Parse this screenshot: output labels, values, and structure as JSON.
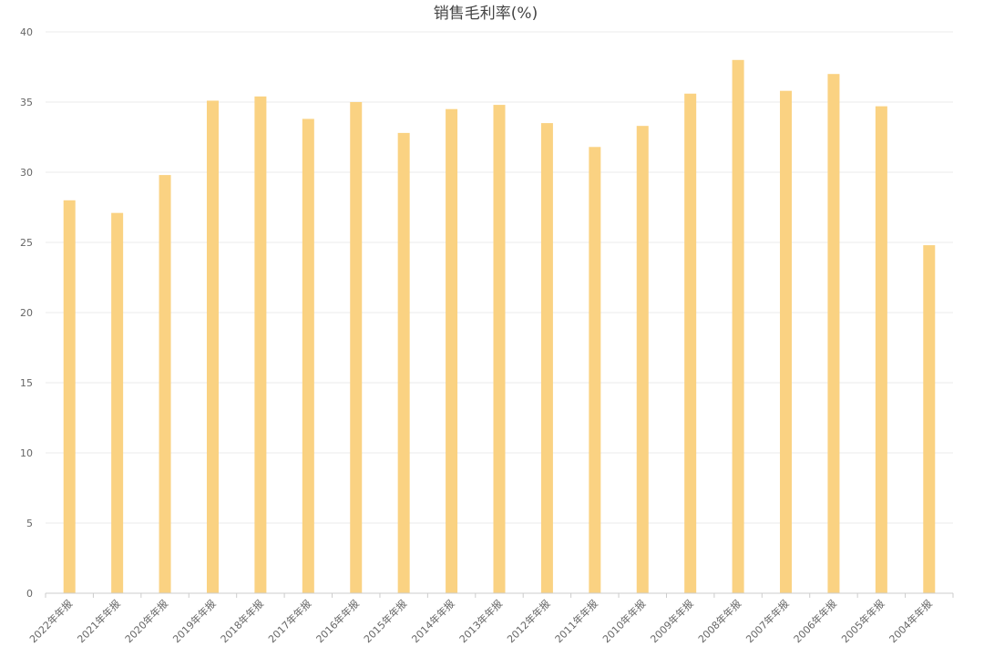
{
  "chart_data": {
    "type": "bar",
    "title": "销售毛利率(%)",
    "xlabel": "",
    "ylabel": "",
    "ylim": [
      0,
      40
    ],
    "yticks": [
      0,
      5,
      10,
      15,
      20,
      25,
      30,
      35,
      40
    ],
    "grid": true,
    "legend": "none",
    "bar_color": "#fad282",
    "categories": [
      "2022年年报",
      "2021年年报",
      "2020年年报",
      "2019年年报",
      "2018年年报",
      "2017年年报",
      "2016年年报",
      "2015年年报",
      "2014年年报",
      "2013年年报",
      "2012年年报",
      "2011年年报",
      "2010年年报",
      "2009年年报",
      "2008年年报",
      "2007年年报",
      "2006年年报",
      "2005年年报",
      "2004年年报"
    ],
    "values": [
      28.0,
      27.1,
      29.8,
      35.1,
      35.4,
      33.8,
      35.0,
      32.8,
      34.5,
      34.8,
      33.5,
      31.8,
      33.3,
      35.6,
      38.0,
      35.8,
      37.0,
      34.7,
      24.8
    ]
  }
}
